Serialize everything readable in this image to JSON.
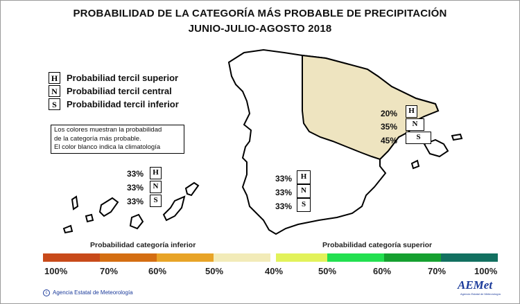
{
  "title": {
    "line1": "PROBABILIDAD DE LA CATEGORÍA MÁS PROBABLE DE PRECIPITACIÓN",
    "line2": "JUNIO-JULIO-AGOSTO 2018"
  },
  "legend": [
    {
      "letter": "H",
      "label": "Probabiliad tercil superior"
    },
    {
      "letter": "N",
      "label": "Probabiliad tercil central"
    },
    {
      "letter": "S",
      "label": "Probabilidad tercil inferior"
    }
  ],
  "note": [
    "Los colores muestran la probabilidad",
    "de la categoría más probable.",
    "El color blanco indica la climatología"
  ],
  "regions": {
    "canarias": {
      "H": "33%",
      "N": "33%",
      "S": "33%"
    },
    "peninsula": {
      "H": "33%",
      "N": "33%",
      "S": "33%"
    },
    "northeast": {
      "H": "20%",
      "N": "35%",
      "S": "45%"
    }
  },
  "scale": {
    "lower_title": "Probabilidad categoría inferior",
    "upper_title": "Probabilidad categoría superior",
    "lower_colors": [
      "#c84a1a",
      "#d46e12",
      "#e8a428",
      "#f2ebb8"
    ],
    "upper_colors": [
      "#e2f25a",
      "#22e050",
      "#16a030",
      "#127060"
    ],
    "northeast_fill": "#eee4c0",
    "labels": [
      "100%",
      "70%",
      "60%",
      "50%",
      "40%",
      "50%",
      "60%",
      "70%",
      "100%"
    ]
  },
  "footer": {
    "agency": "Agencia Estatal de Meteorología",
    "logo": "AEMet",
    "logo_sub": "Agencia Estatal de Meteorología"
  }
}
